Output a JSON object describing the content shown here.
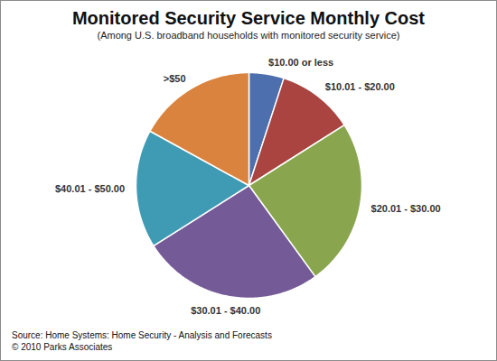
{
  "chart_data": {
    "type": "pie",
    "title": "Monitored Security Service Monthly Cost",
    "subtitle": "(Among U.S. broadband households with monitored security service)",
    "categories": [
      "$10.00 or less",
      "$10.01 - $20.00",
      "$20.01 - $30.00",
      "$30.01 - $40.00",
      "$40.01 - $50.00",
      ">$50"
    ],
    "values": [
      5,
      11,
      24,
      26,
      17,
      17
    ],
    "colors": [
      "#4d6fae",
      "#a94441",
      "#89a64e",
      "#745a97",
      "#3f9bb3",
      "#d9833f"
    ],
    "data_labels": false,
    "annotations": [
      "Source: Home Systems: Home Security - Analysis and Forecasts",
      "© 2010 Parks Associates"
    ]
  }
}
